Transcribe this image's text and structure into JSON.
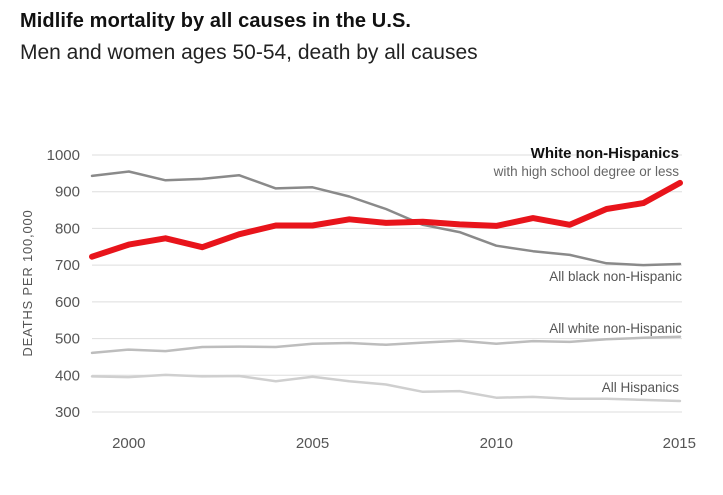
{
  "chart_data": {
    "type": "line",
    "title": "Midlife mortality by all causes in the U.S.",
    "subtitle": "Men and women ages 50-54, death by all causes",
    "ylabel": "DEATHS PER 100,000",
    "xlabel": "",
    "ylim": [
      300,
      1000
    ],
    "xlim": [
      1999,
      2015
    ],
    "y_ticks": [
      300,
      400,
      500,
      600,
      700,
      800,
      900,
      1000
    ],
    "x_ticks": [
      2000,
      2005,
      2010,
      2015
    ],
    "grid": "horizontal",
    "x": [
      1999,
      2000,
      2001,
      2002,
      2003,
      2004,
      2005,
      2006,
      2007,
      2008,
      2009,
      2010,
      2011,
      2012,
      2013,
      2014,
      2015
    ],
    "series": [
      {
        "name": "All Hispanics",
        "color": "#cfcfcf",
        "width": 2.5,
        "label_position": "right",
        "values": [
          397,
          395,
          401,
          397,
          398,
          384,
          396,
          384,
          375,
          355,
          357,
          339,
          341,
          336,
          336,
          333,
          330
        ]
      },
      {
        "name": "All white non-Hispanic",
        "color": "#bdbdbd",
        "width": 2.5,
        "label_position": "right",
        "values": [
          461,
          470,
          466,
          477,
          478,
          477,
          486,
          488,
          483,
          489,
          494,
          486,
          493,
          491,
          498,
          502,
          505
        ]
      },
      {
        "name": "All black non-Hispanic",
        "color": "#8a8a8a",
        "width": 2.5,
        "label_position": "right",
        "values": [
          943,
          955,
          931,
          935,
          945,
          909,
          912,
          887,
          853,
          810,
          790,
          753,
          738,
          728,
          705,
          700,
          703
        ]
      },
      {
        "name": "White non-Hispanics",
        "name_sub": "with high school degree or less",
        "color": "#e8141b",
        "width": 6,
        "label_position": "right",
        "highlight": true,
        "values": [
          723,
          756,
          773,
          749,
          784,
          808,
          808,
          825,
          815,
          818,
          811,
          807,
          828,
          810,
          853,
          869,
          924
        ]
      }
    ]
  }
}
